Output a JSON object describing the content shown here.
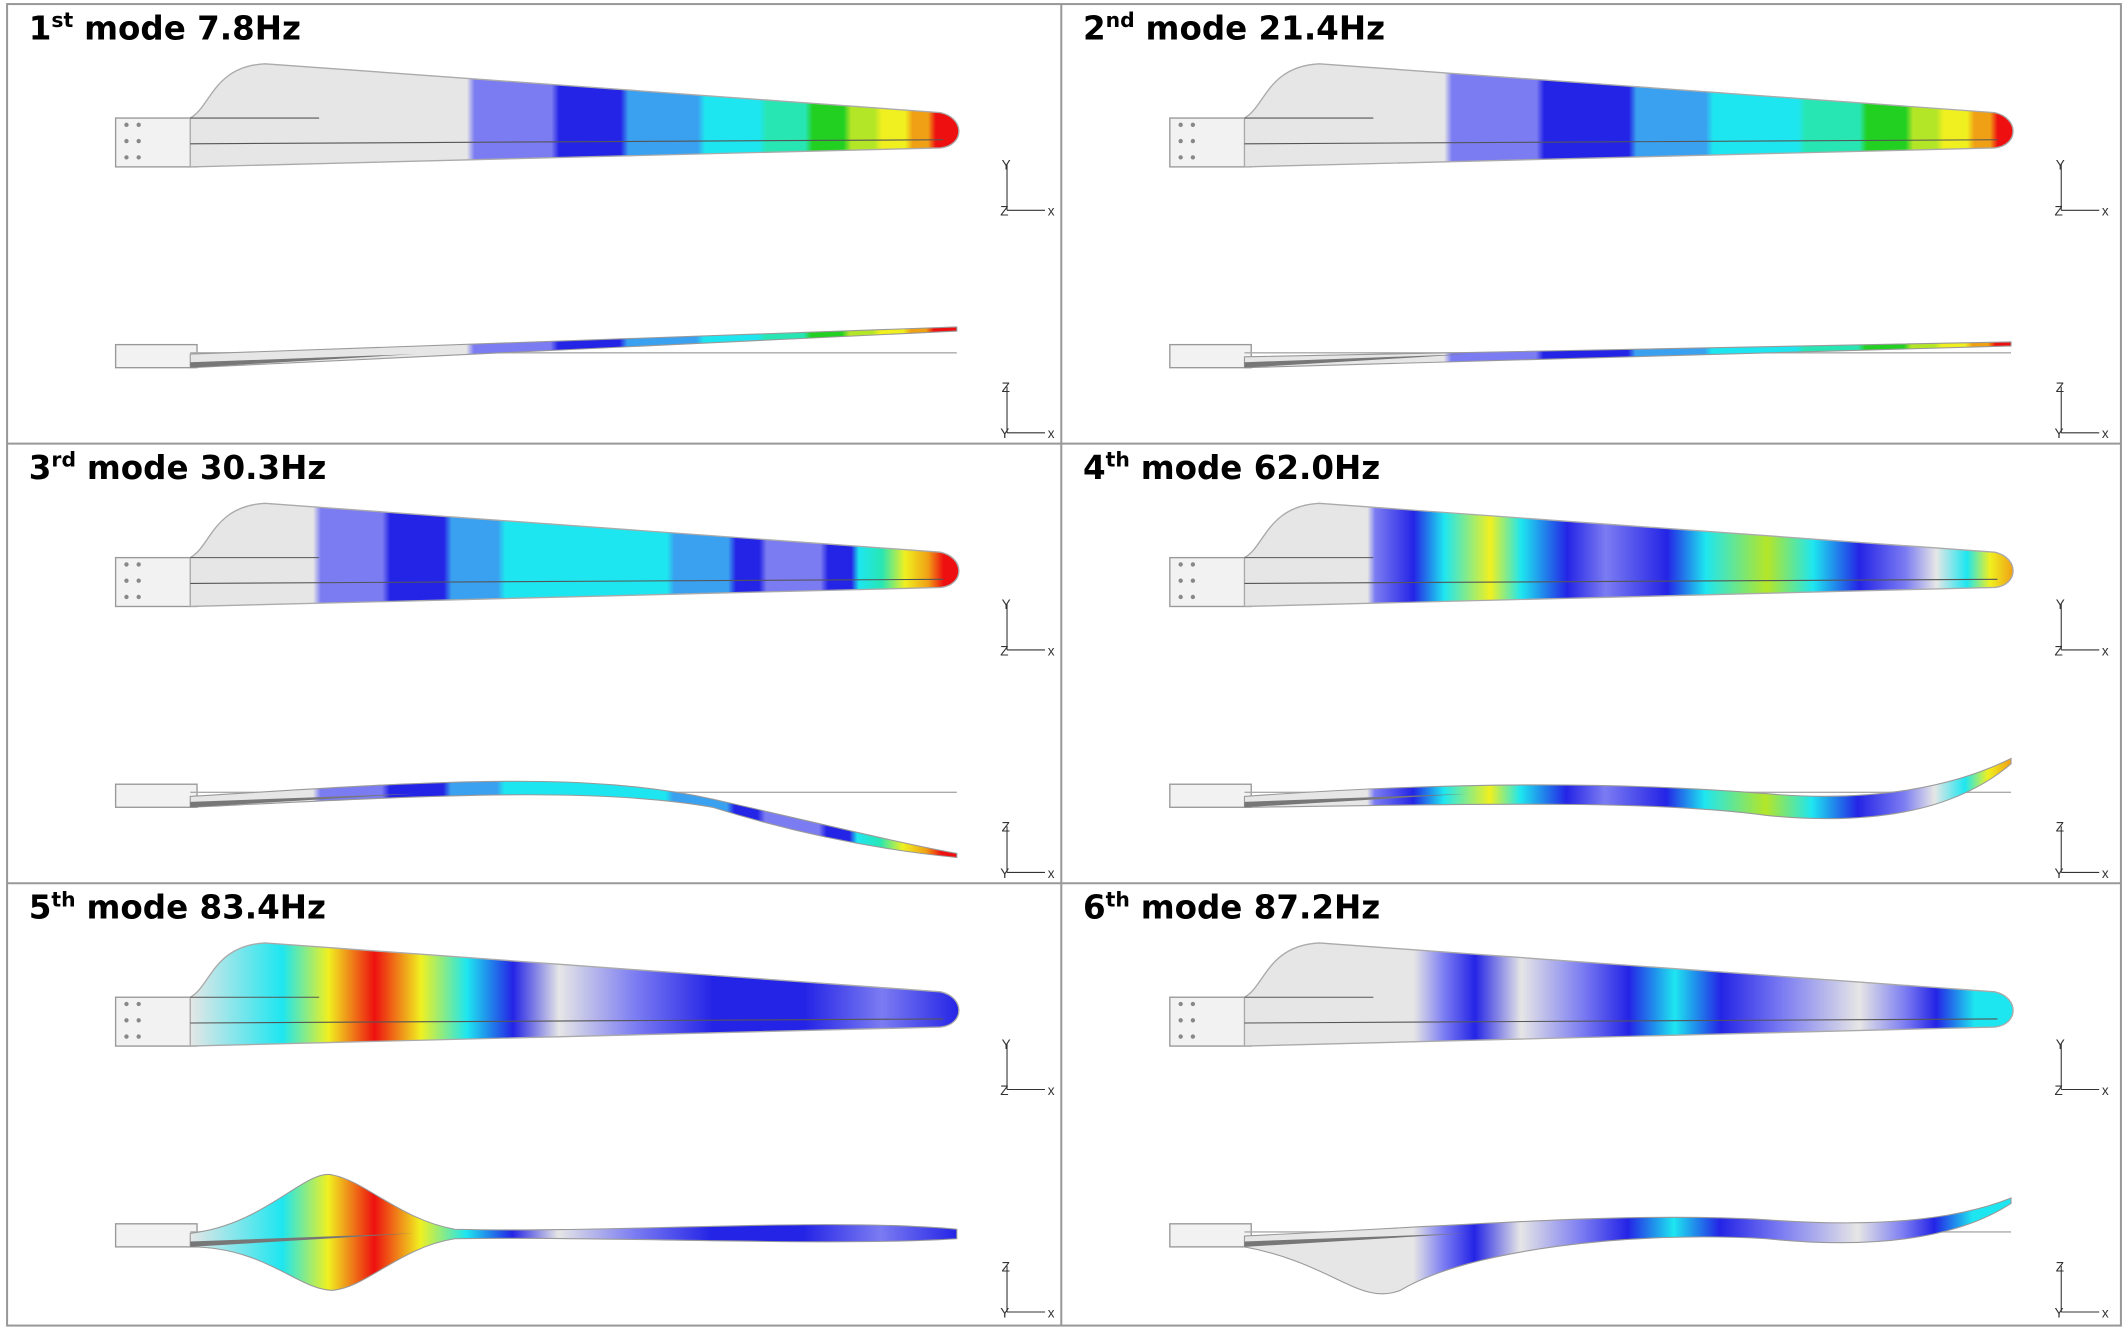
{
  "panels": [
    {
      "number": "1",
      "suffix": "st",
      "label": "mode 7.8Hz"
    },
    {
      "number": "2",
      "suffix": "nd",
      "label": "mode 21.4Hz"
    },
    {
      "number": "3",
      "suffix": "rd",
      "label": "mode 30.3Hz"
    },
    {
      "number": "4",
      "suffix": "th",
      "label": "mode 62.0Hz"
    },
    {
      "number": "5",
      "suffix": "th",
      "label": "mode 83.4Hz"
    },
    {
      "number": "6",
      "suffix": "th",
      "label": "mode 87.2Hz"
    }
  ],
  "axis_labels": {
    "top_view": {
      "up": "Y",
      "origin": "Z",
      "right": "x"
    },
    "side_view": {
      "up": "Z",
      "origin": "Y",
      "right": "x"
    }
  }
}
